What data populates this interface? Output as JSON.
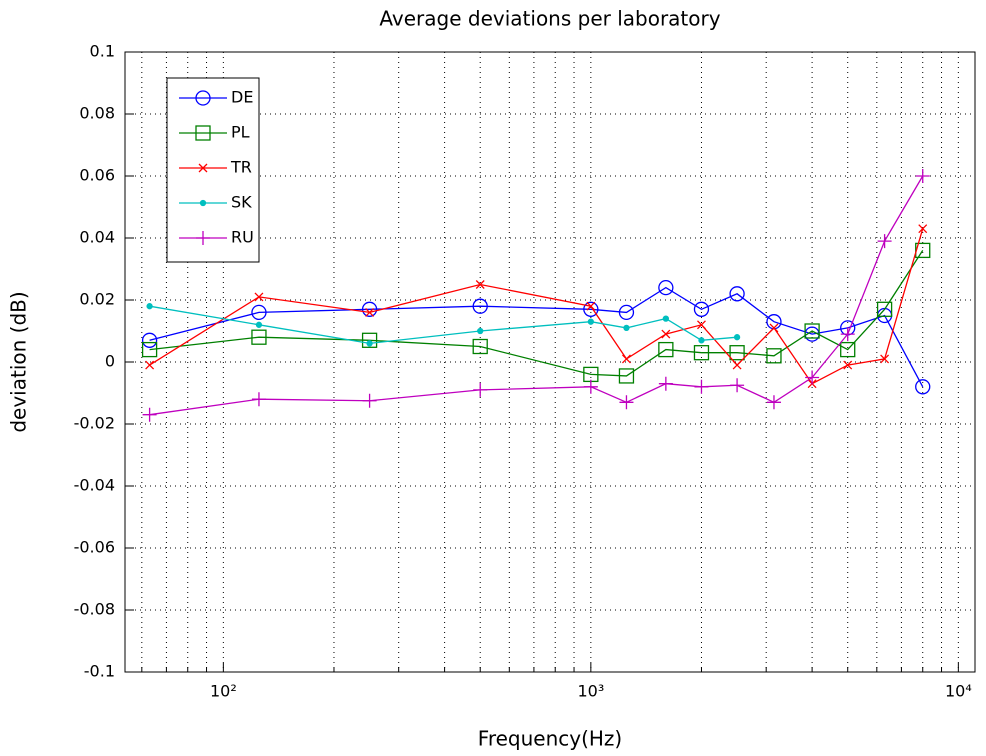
{
  "chart_data": {
    "type": "line",
    "title": "Average deviations per laboratory",
    "xlabel": "Frequency(Hz)",
    "ylabel": "deviation (dB)",
    "xscale": "log",
    "grid": true,
    "legend": "upper left",
    "x": [
      63,
      125,
      250,
      500,
      1000,
      1250,
      1600,
      2000,
      2500,
      3150,
      4000,
      5000,
      6300,
      8000
    ],
    "series": [
      {
        "name": "DE",
        "color": "#0000ff",
        "marker": "circle",
        "values": [
          0.007,
          0.016,
          0.017,
          0.018,
          0.017,
          0.016,
          0.024,
          0.017,
          0.022,
          0.013,
          0.009,
          0.011,
          0.015,
          -0.008
        ]
      },
      {
        "name": "PL",
        "color": "#008000",
        "marker": "square",
        "values": [
          0.004,
          0.008,
          0.007,
          0.005,
          -0.004,
          -0.0045,
          0.004,
          0.003,
          0.003,
          0.002,
          0.01,
          0.004,
          0.017,
          0.036
        ]
      },
      {
        "name": "TR",
        "color": "#ff0000",
        "marker": "x",
        "values": [
          -0.001,
          0.021,
          0.016,
          0.025,
          0.018,
          0.001,
          0.009,
          0.012,
          -0.001,
          0.011,
          -0.007,
          -0.001,
          0.001,
          0.043
        ]
      },
      {
        "name": "SK",
        "color": "#00bfbf",
        "marker": "dot",
        "values": [
          0.018,
          0.012,
          0.006,
          0.01,
          0.013,
          0.011,
          0.014,
          0.007,
          0.008,
          null,
          null,
          null,
          null,
          null
        ]
      },
      {
        "name": "RU",
        "color": "#bf00bf",
        "marker": "plus",
        "values": [
          -0.017,
          -0.012,
          -0.0125,
          -0.009,
          -0.008,
          -0.013,
          -0.007,
          -0.008,
          -0.0075,
          -0.013,
          -0.005,
          0.009,
          0.039,
          0.06
        ]
      }
    ],
    "xlim": [
      54,
      11100
    ],
    "xticks": [
      {
        "value": 100,
        "label": "10²"
      },
      {
        "value": 1000,
        "label": "10³"
      },
      {
        "value": 10000,
        "label": "10⁴"
      }
    ],
    "xminorticks": [
      60,
      70,
      80,
      90,
      200,
      300,
      400,
      500,
      600,
      700,
      800,
      900,
      2000,
      3000,
      4000,
      5000,
      6000,
      7000,
      8000,
      9000
    ],
    "ylim": [
      -0.1,
      0.1
    ],
    "yticks": [
      -0.1,
      -0.08,
      -0.06,
      -0.04,
      -0.02,
      0,
      0.02,
      0.04,
      0.06,
      0.08,
      0.1
    ]
  }
}
